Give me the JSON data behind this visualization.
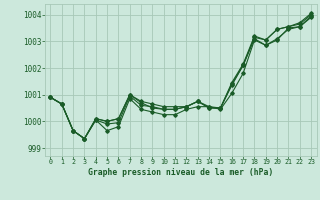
{
  "background_color": "#cce8dc",
  "grid_color": "#a8c8b8",
  "line_color": "#1a5c28",
  "xlabel": "Graphe pression niveau de la mer (hPa)",
  "ylim": [
    998.7,
    1004.4
  ],
  "xlim": [
    -0.5,
    23.5
  ],
  "yticks": [
    999,
    1000,
    1001,
    1002,
    1003,
    1004
  ],
  "xticks": [
    0,
    1,
    2,
    3,
    4,
    5,
    6,
    7,
    8,
    9,
    10,
    11,
    12,
    13,
    14,
    15,
    16,
    17,
    18,
    19,
    20,
    21,
    22,
    23
  ],
  "series": [
    [
      1000.9,
      1000.65,
      999.65,
      999.35,
      1000.05,
      999.65,
      999.8,
      1000.85,
      1000.45,
      1000.35,
      1000.25,
      1000.25,
      1000.45,
      1000.55,
      1000.55,
      1000.45,
      1001.05,
      1001.8,
      1003.05,
      1002.85,
      1003.05,
      1003.5,
      1003.55,
      1003.9
    ],
    [
      1000.9,
      1000.65,
      999.65,
      999.35,
      1000.1,
      1000.0,
      1000.1,
      1001.0,
      1000.7,
      1000.5,
      1000.45,
      1000.45,
      1000.55,
      1000.75,
      1000.5,
      1000.5,
      1001.4,
      1002.1,
      1003.15,
      1003.05,
      1003.45,
      1003.55,
      1003.65,
      1004.0
    ],
    [
      1000.9,
      1000.65,
      999.65,
      999.35,
      1000.1,
      1000.0,
      1000.1,
      1001.0,
      1000.75,
      1000.65,
      1000.55,
      1000.55,
      1000.55,
      1000.75,
      1000.5,
      1000.5,
      1001.45,
      1002.15,
      1003.2,
      1003.05,
      1003.45,
      1003.55,
      1003.7,
      1004.05
    ],
    [
      1000.9,
      1000.65,
      999.65,
      999.35,
      1000.05,
      999.9,
      999.95,
      1000.95,
      1000.6,
      1000.55,
      1000.45,
      1000.45,
      1000.55,
      1000.75,
      1000.55,
      1000.5,
      1001.35,
      1002.1,
      1003.1,
      1002.85,
      1003.1,
      1003.45,
      1003.55,
      1003.95
    ]
  ]
}
